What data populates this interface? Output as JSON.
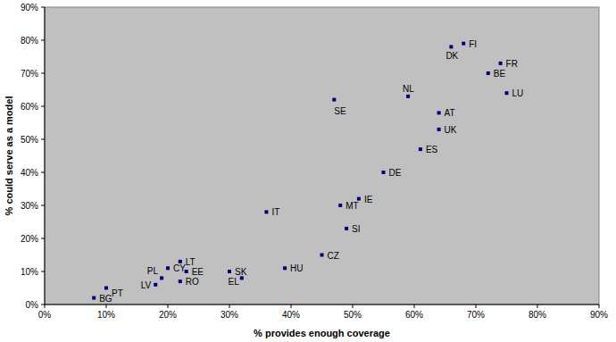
{
  "chart_data": {
    "type": "scatter",
    "x_label": "% provides enough coverage",
    "y_label": "% could serve as a model",
    "labels": [
      "BG",
      "PT",
      "LV",
      "PL",
      "CY",
      "LT",
      "EE",
      "RO",
      "SK",
      "EL",
      "HU",
      "IT",
      "CZ",
      "MT",
      "SI",
      "IE",
      "SE",
      "DE",
      "ES",
      "NL",
      "UK",
      "AT",
      "DK",
      "FI",
      "FR",
      "BE",
      "LU"
    ],
    "x": [
      8,
      10,
      18,
      19,
      20,
      22,
      23,
      22,
      30,
      32,
      39,
      36,
      45,
      48,
      49,
      51,
      47,
      55,
      61,
      59,
      64,
      64,
      66,
      68,
      74,
      72,
      75
    ],
    "values": [
      2,
      5,
      6,
      8,
      11,
      13,
      10,
      7,
      10,
      8,
      11,
      28,
      15,
      30,
      23,
      32,
      62,
      40,
      47,
      63,
      53,
      58,
      78,
      79,
      73,
      70,
      64
    ],
    "color": "#000080",
    "marker": "square",
    "grid": false,
    "xlim": [
      0,
      90
    ],
    "ylim": [
      0,
      90
    ],
    "xticks": [
      {
        "value": 0,
        "label": "0%"
      },
      {
        "value": 10,
        "label": "10%"
      },
      {
        "value": 20,
        "label": "20%"
      },
      {
        "value": 30,
        "label": "30%"
      },
      {
        "value": 40,
        "label": "40%"
      },
      {
        "value": 50,
        "label": "50%"
      },
      {
        "value": 60,
        "label": "60%"
      },
      {
        "value": 70,
        "label": "70%"
      },
      {
        "value": 80,
        "label": "80%"
      },
      {
        "value": 90,
        "label": "90%"
      }
    ],
    "yticks": [
      {
        "value": 0,
        "label": "0%"
      },
      {
        "value": 10,
        "label": "10%"
      },
      {
        "value": 20,
        "label": "20%"
      },
      {
        "value": 30,
        "label": "30%"
      },
      {
        "value": 40,
        "label": "40%"
      },
      {
        "value": 50,
        "label": "50%"
      },
      {
        "value": 60,
        "label": "60%"
      },
      {
        "value": 70,
        "label": "70%"
      },
      {
        "value": 80,
        "label": "80%"
      },
      {
        "value": 90,
        "label": "90%"
      }
    ]
  }
}
